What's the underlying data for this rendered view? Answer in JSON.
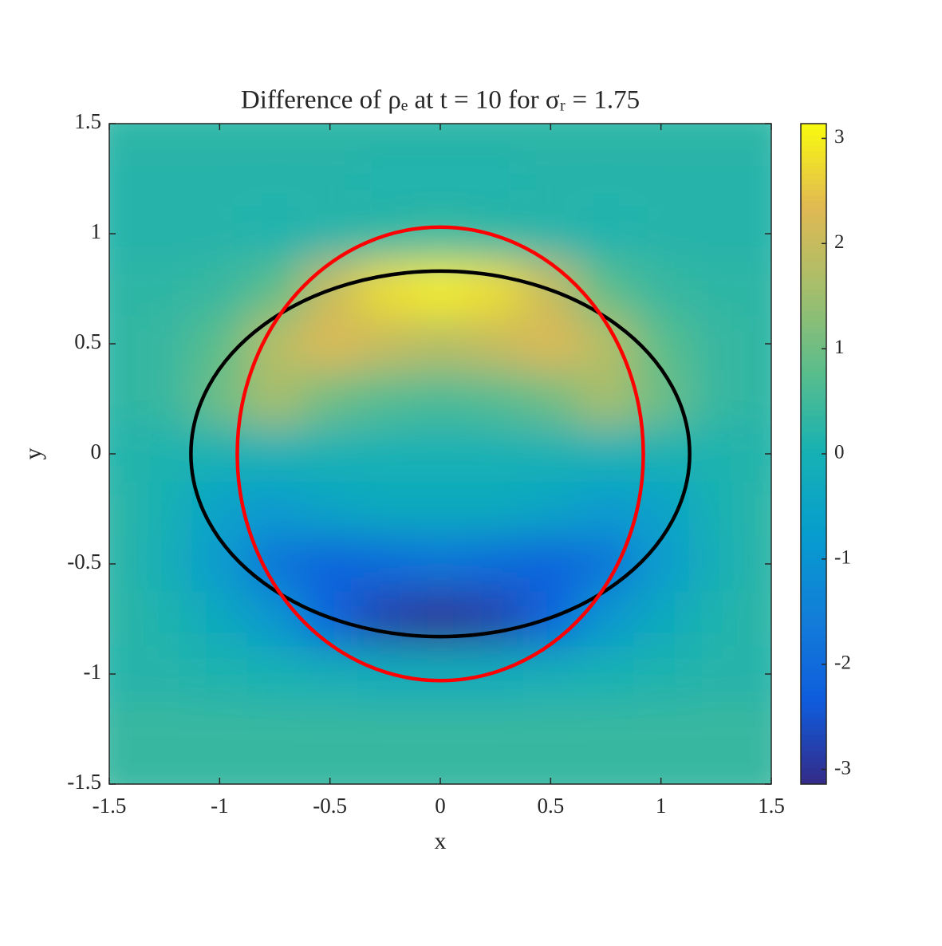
{
  "chart_data": {
    "type": "heatmap",
    "title": "Difference of ρₑ at t = 10 for σᵣ = 1.75",
    "x_label": "x",
    "y_label": "y",
    "xlim": [
      -1.5,
      1.5
    ],
    "ylim": [
      -1.5,
      1.5
    ],
    "xticks": [
      -1.5,
      -1,
      -0.5,
      0,
      0.5,
      1,
      1.5
    ],
    "yticks": [
      -1.5,
      -1,
      -0.5,
      0,
      0.5,
      1,
      1.5
    ],
    "colormap": "parula",
    "clim": [
      -3.14,
      3.14
    ],
    "cticks": [
      -3,
      -2,
      -1,
      0,
      1,
      2,
      3
    ],
    "x": [
      -1.5,
      -1.25,
      -1,
      -0.75,
      -0.5,
      -0.25,
      0,
      0.25,
      0.5,
      0.75,
      1,
      1.25,
      1.5
    ],
    "y": [
      1.5,
      1.25,
      1,
      0.75,
      0.5,
      0.25,
      0,
      -0.25,
      -0.5,
      -0.75,
      -1,
      -1.25,
      -1.5
    ],
    "z": [
      [
        0.3,
        0.3,
        0.3,
        0.3,
        0.3,
        0.3,
        0.3,
        0.3,
        0.3,
        0.3,
        0.3,
        0.3,
        0.3
      ],
      [
        0.2,
        0.2,
        0.2,
        0.2,
        0.2,
        0.1,
        0.1,
        0.1,
        0.2,
        0.2,
        0.2,
        0.2,
        0.2
      ],
      [
        0.2,
        0.2,
        0.2,
        0.1,
        0.2,
        0.3,
        0.4,
        0.3,
        0.2,
        0.1,
        0.2,
        0.2,
        0.2
      ],
      [
        0.3,
        0.3,
        0.4,
        0.8,
        2.0,
        2.8,
        3.0,
        2.8,
        2.0,
        0.8,
        0.4,
        0.3,
        0.3
      ],
      [
        0.3,
        0.4,
        0.8,
        1.8,
        2.3,
        2.0,
        1.8,
        2.0,
        2.3,
        1.8,
        0.8,
        0.4,
        0.3
      ],
      [
        0.3,
        0.4,
        1.0,
        1.6,
        1.0,
        0.7,
        0.6,
        0.7,
        1.0,
        1.6,
        1.0,
        0.4,
        0.3
      ],
      [
        0.2,
        0.1,
        0,
        0,
        0,
        0,
        0,
        0,
        0,
        0,
        0,
        0.1,
        0.2
      ],
      [
        0.3,
        0,
        -0.6,
        -0.8,
        -0.5,
        -0.3,
        -0.3,
        -0.3,
        -0.5,
        -0.8,
        -0.6,
        0,
        0.3
      ],
      [
        0.3,
        -0.1,
        -0.8,
        -1.8,
        -2.2,
        -2.0,
        -1.8,
        -2.0,
        -2.2,
        -1.8,
        -0.8,
        -0.1,
        0.3
      ],
      [
        0.3,
        0.1,
        -0.3,
        -0.9,
        -2.2,
        -2.8,
        -3.0,
        -2.8,
        -2.2,
        -0.9,
        -0.3,
        0.1,
        0.3
      ],
      [
        0.2,
        0.2,
        0.1,
        0,
        -0.1,
        -0.2,
        -0.2,
        -0.2,
        -0.1,
        0,
        0.1,
        0.2,
        0.2
      ],
      [
        0.4,
        0.4,
        0.4,
        0.4,
        0.4,
        0.4,
        0.4,
        0.4,
        0.4,
        0.4,
        0.4,
        0.4,
        0.4
      ],
      [
        0.4,
        0.4,
        0.4,
        0.4,
        0.4,
        0.4,
        0.4,
        0.4,
        0.4,
        0.4,
        0.4,
        0.4,
        0.4
      ]
    ],
    "curves": [
      {
        "color": "#000000",
        "center": [
          0,
          0
        ],
        "rx": 1.13,
        "ry": 0.83
      },
      {
        "color": "#ff0000",
        "center": [
          0,
          0
        ],
        "rx": 0.92,
        "ry": 1.03
      }
    ]
  }
}
